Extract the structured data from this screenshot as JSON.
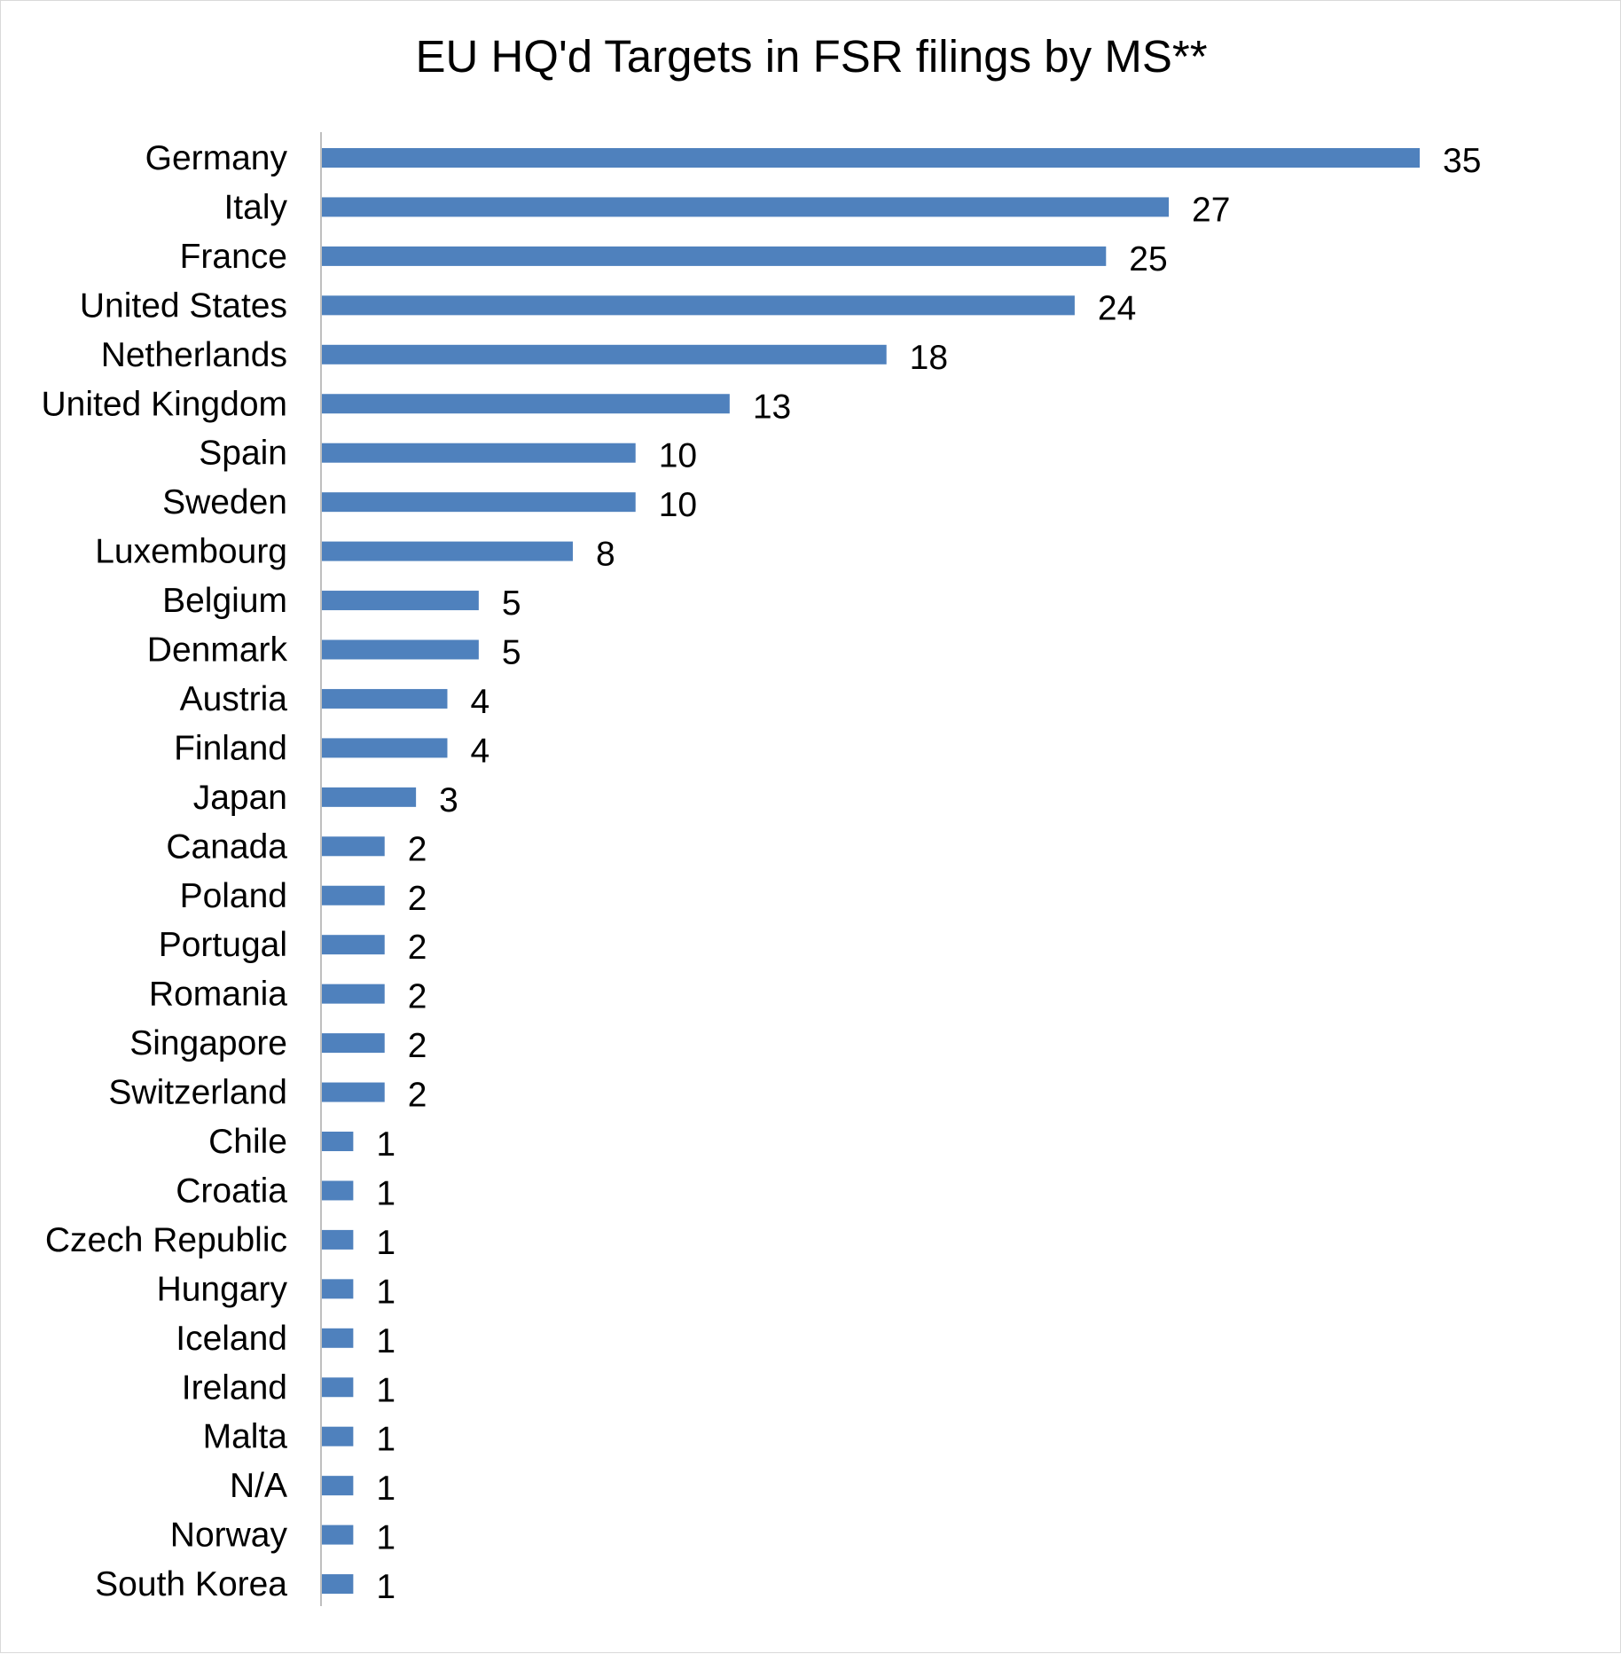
{
  "chart_data": {
    "type": "bar",
    "orientation": "horizontal",
    "title": "EU HQ'd Targets in FSR filings by MS**",
    "xlabel": "",
    "ylabel": "",
    "grid": false,
    "legend": "none",
    "data_labels": true,
    "bar_color": "#4f81bd",
    "xlim": [
      0,
      35
    ],
    "categories": [
      "Germany",
      "Italy",
      "France",
      "United States",
      "Netherlands",
      "United Kingdom",
      "Spain",
      "Sweden",
      "Luxembourg",
      "Belgium",
      "Denmark",
      "Austria",
      "Finland",
      "Japan",
      "Canada",
      "Poland",
      "Portugal",
      "Romania",
      "Singapore",
      "Switzerland",
      "Chile",
      "Croatia",
      "Czech Republic",
      "Hungary",
      "Iceland",
      "Ireland",
      "Malta",
      "N/A",
      "Norway",
      "South Korea"
    ],
    "values": [
      35,
      27,
      25,
      24,
      18,
      13,
      10,
      10,
      8,
      5,
      5,
      4,
      4,
      3,
      2,
      2,
      2,
      2,
      2,
      2,
      1,
      1,
      1,
      1,
      1,
      1,
      1,
      1,
      1,
      1
    ]
  }
}
